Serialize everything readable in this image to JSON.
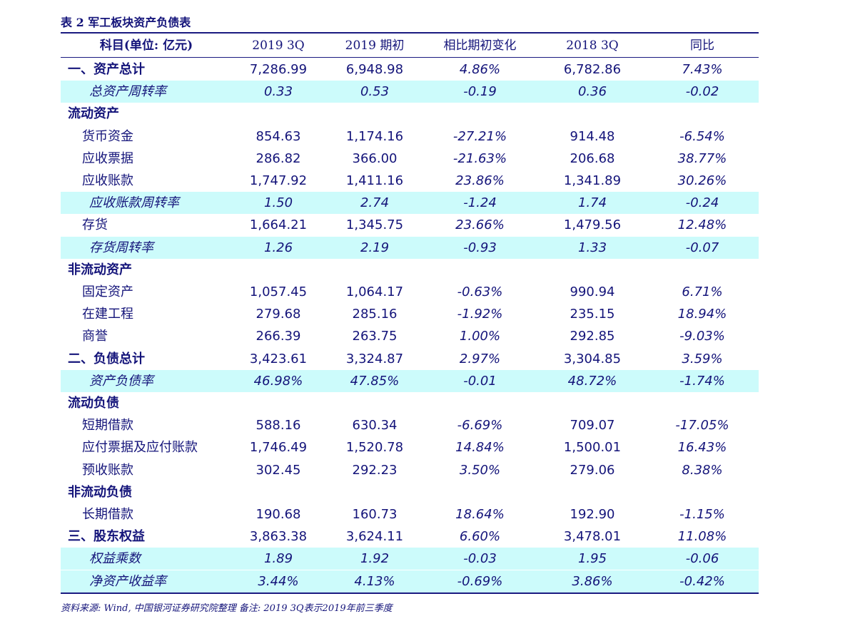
{
  "title": "表 2 军工板块资产负债表",
  "table": {
    "header": [
      "科目(单位: 亿元)",
      "2019 3Q",
      "2019 期初",
      "相比期初变化",
      "2018 3Q",
      "同比"
    ],
    "rows": [
      [
        "一、资产总计",
        "7,286.99",
        "6,948.98",
        "4.86%",
        "6,782.86",
        "7.43%"
      ],
      [
        "总资产周转率",
        "0.33",
        "0.53",
        "-0.19",
        "0.36",
        "-0.02"
      ],
      [
        "流动资产"
      ],
      [
        "货币资金",
        "854.63",
        "1,174.16",
        "-27.21%",
        "914.48",
        "-6.54%"
      ],
      [
        "应收票据",
        "286.82",
        "366.00",
        "-21.63%",
        "206.68",
        "38.77%"
      ],
      [
        "应收账款",
        "1,747.92",
        "1,411.16",
        "23.86%",
        "1,341.89",
        "30.26%"
      ],
      [
        "应收账款周转率",
        "1.50",
        "2.74",
        "-1.24",
        "1.74",
        "-0.24"
      ],
      [
        "存货",
        "1,664.21",
        "1,345.75",
        "23.66%",
        "1,479.56",
        "12.48%"
      ],
      [
        "存货周转率",
        "1.26",
        "2.19",
        "-0.93",
        "1.33",
        "-0.07"
      ],
      [
        "非流动资产"
      ],
      [
        "固定资产",
        "1,057.45",
        "1,064.17",
        "-0.63%",
        "990.94",
        "6.71%"
      ],
      [
        "在建工程",
        "279.68",
        "285.16",
        "-1.92%",
        "235.15",
        "18.94%"
      ],
      [
        "商誉",
        "266.39",
        "263.75",
        "1.00%",
        "292.85",
        "-9.03%"
      ],
      [
        "二、负债总计",
        "3,423.61",
        "3,324.87",
        "2.97%",
        "3,304.85",
        "3.59%"
      ],
      [
        "资产负债率",
        "46.98%",
        "47.85%",
        "-0.01",
        "48.72%",
        "-1.74%"
      ],
      [
        "流动负债"
      ],
      [
        "短期借款",
        "588.16",
        "630.34",
        "-6.69%",
        "709.07",
        "-17.05%"
      ],
      [
        "应付票据及应付账款",
        "1,746.49",
        "1,520.78",
        "14.84%",
        "1,500.01",
        "16.43%"
      ],
      [
        "预收账款",
        "302.45",
        "292.23",
        "3.50%",
        "279.06",
        "8.38%"
      ],
      [
        "非流动负债"
      ],
      [
        "长期借款",
        "190.68",
        "160.73",
        "18.64%",
        "192.90",
        "-1.15%"
      ],
      [
        "三、股东权益",
        "3,863.38",
        "3,624.11",
        "6.60%",
        "3,478.01",
        "11.08%"
      ],
      [
        "权益乘数",
        "1.89",
        "1.92",
        "-0.03",
        "1.95",
        "-0.06"
      ],
      [
        "净资产收益率",
        "3.44%",
        "4.13%",
        "-0.69%",
        "3.86%",
        "-0.42%"
      ]
    ]
  },
  "footer": "资料来源: Wind, 中国银河证券研究院整理 备注: 2019 3Q表示2019年前三季度"
}
